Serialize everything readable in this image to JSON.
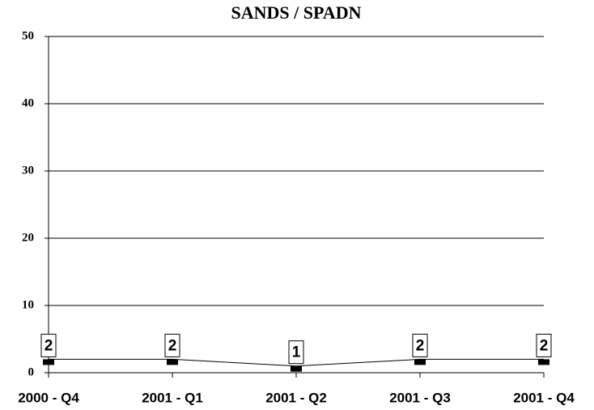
{
  "chart_data": {
    "type": "line",
    "title": "SANDS / SPADN",
    "categories": [
      "2000 - Q4",
      "2001 - Q1",
      "2001 - Q2",
      "2001 - Q3",
      "2001 - Q4"
    ],
    "values": [
      2,
      2,
      1,
      2,
      2
    ],
    "color": "#000000",
    "ylim": [
      0,
      50
    ],
    "yticks": [
      0,
      10,
      20,
      30,
      40,
      50
    ],
    "grid": true
  }
}
